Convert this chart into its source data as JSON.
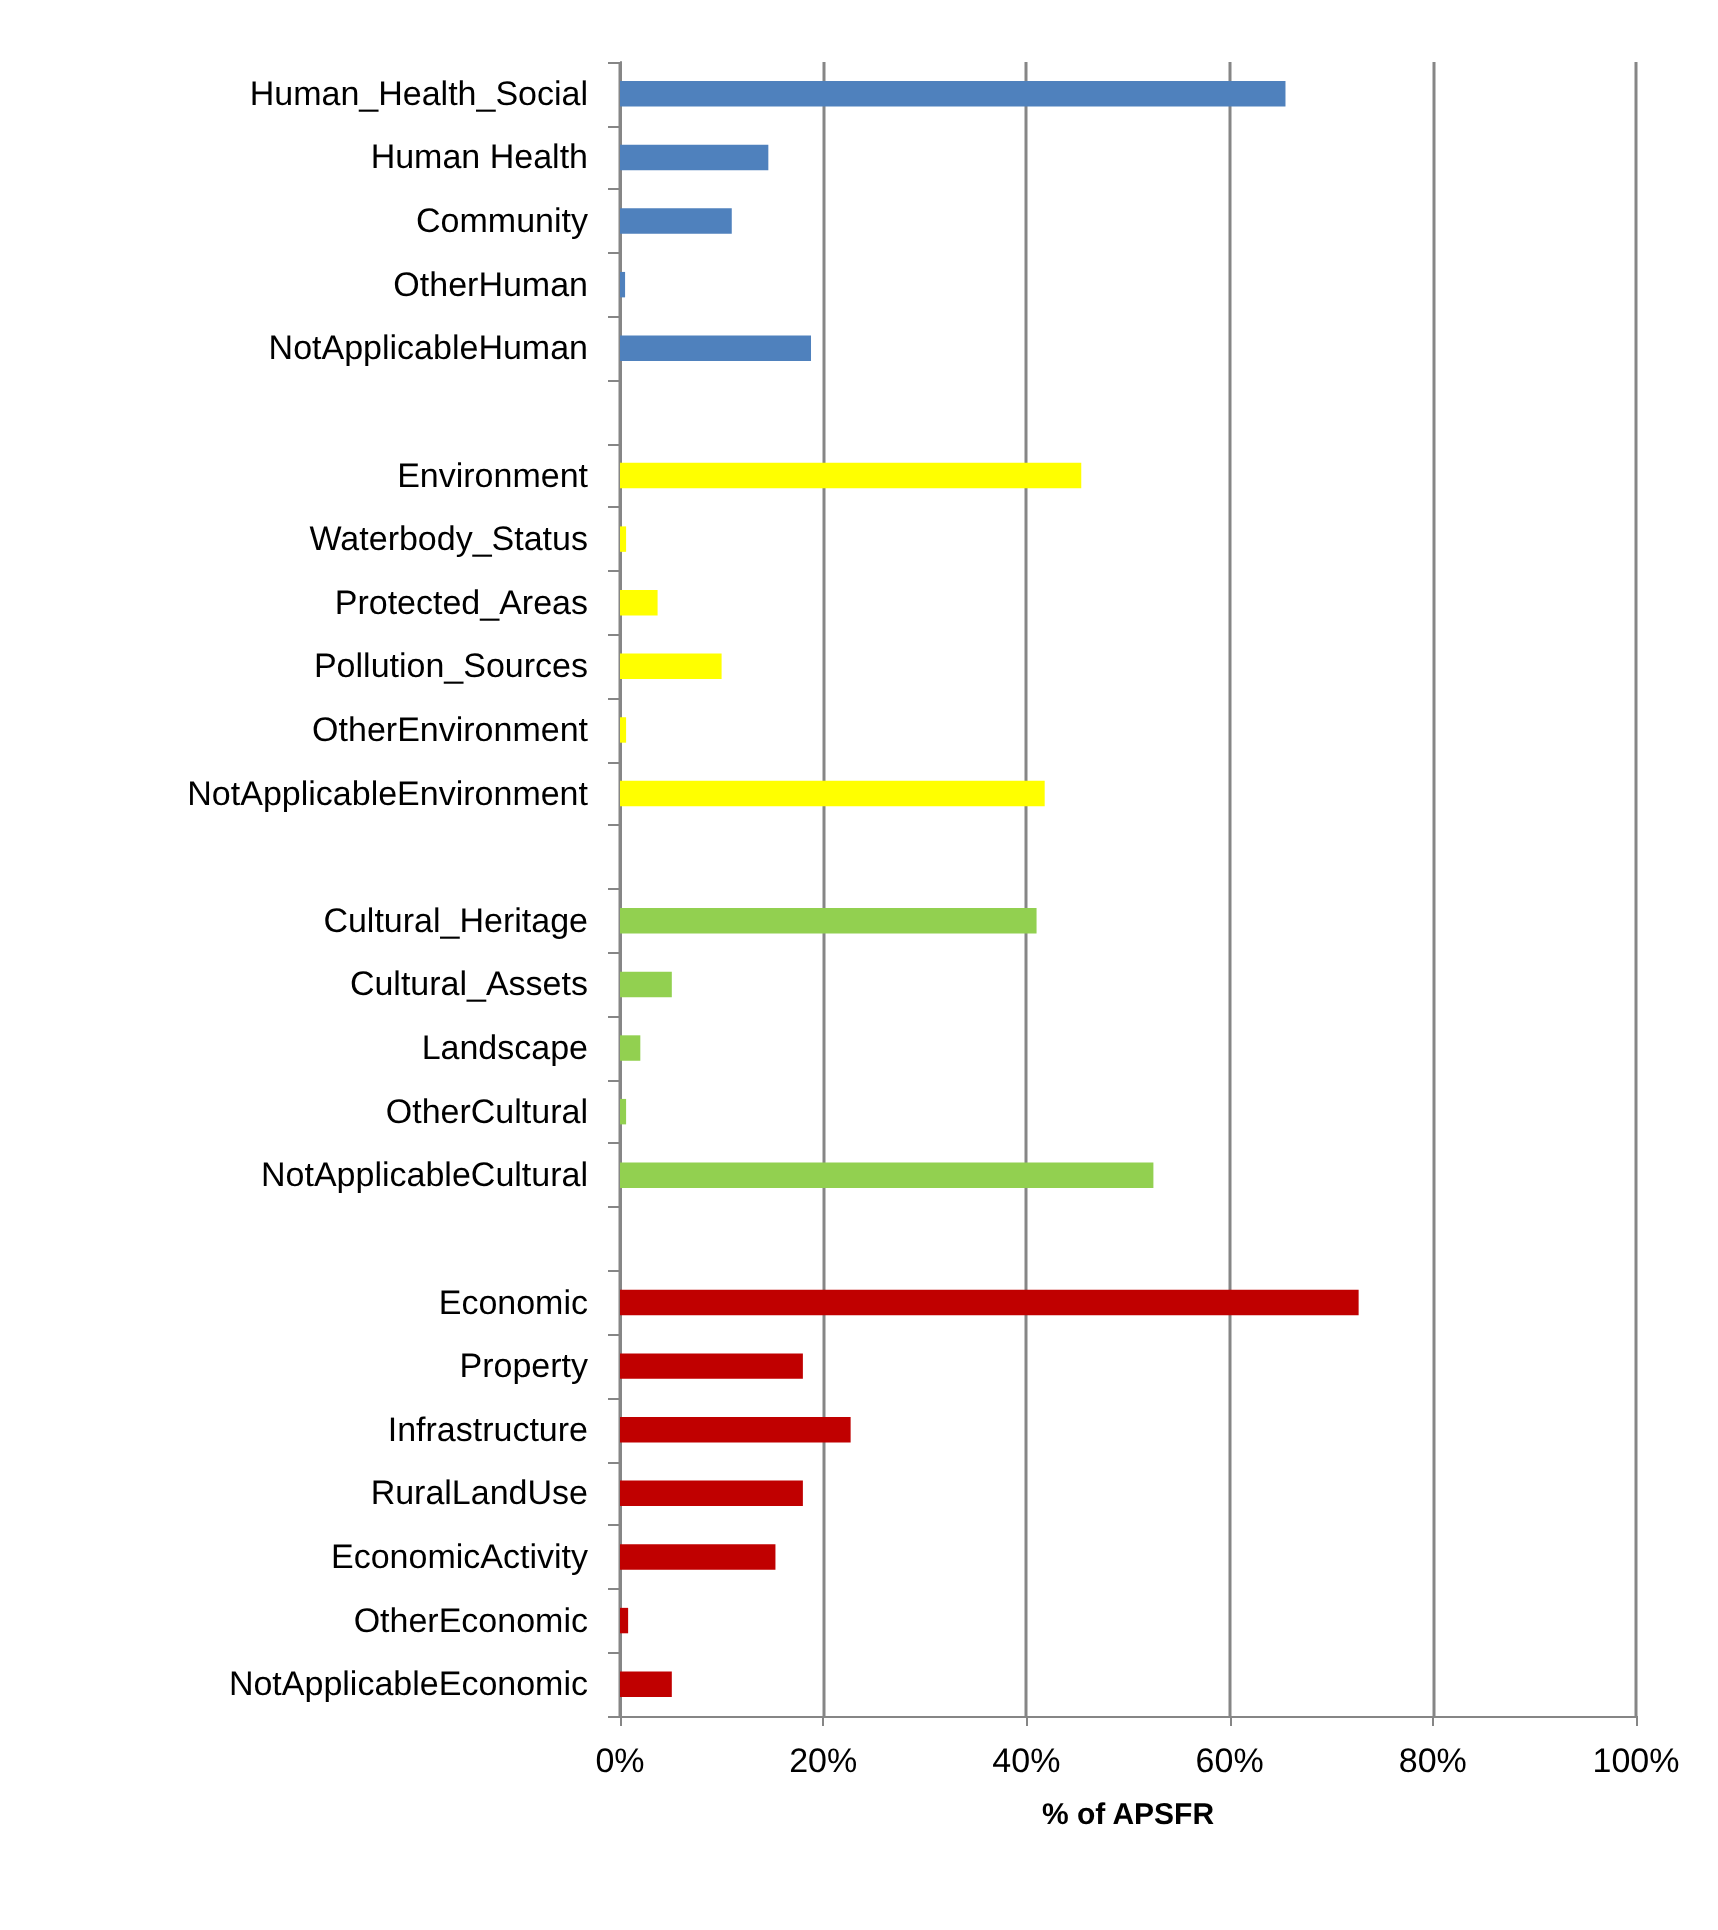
{
  "chart_data": {
    "type": "bar",
    "orientation": "horizontal",
    "xlabel": "% of APSFR",
    "categories": [
      "Human_Health_Social",
      "Human Health",
      "Community",
      "OtherHuman",
      "NotApplicableHuman",
      null,
      "Environment",
      "Waterbody_Status",
      "Protected_Areas",
      "Pollution_Sources",
      "OtherEnvironment",
      "NotApplicableEnvironment",
      null,
      "Cultural_Heritage",
      "Cultural_Assets",
      "Landscape",
      "OtherCultural",
      "NotApplicableCultural",
      null,
      "Economic",
      "Property",
      "Infrastructure",
      "RuralLandUse",
      "EconomicActivity",
      "OtherEconomic",
      "NotApplicableEconomic"
    ],
    "values": [
      65.5,
      14.6,
      11.0,
      0.5,
      18.8,
      null,
      45.4,
      0.6,
      3.7,
      10.0,
      0.6,
      41.8,
      null,
      41.0,
      5.1,
      2.0,
      0.6,
      52.5,
      null,
      72.7,
      18.0,
      22.7,
      18.0,
      15.3,
      0.8,
      5.1
    ],
    "colors": [
      "#4f81bd",
      "#4f81bd",
      "#4f81bd",
      "#4f81bd",
      "#4f81bd",
      null,
      "#ffff00",
      "#ffff00",
      "#ffff00",
      "#ffff00",
      "#ffff00",
      "#ffff00",
      null,
      "#92d050",
      "#92d050",
      "#92d050",
      "#92d050",
      "#92d050",
      null,
      "#c00000",
      "#c00000",
      "#c00000",
      "#c00000",
      "#c00000",
      "#c00000",
      "#c00000"
    ],
    "xlim": [
      0,
      100
    ],
    "xticks": [
      {
        "value": 0,
        "label": "0%"
      },
      {
        "value": 20,
        "label": "20%"
      },
      {
        "value": 40,
        "label": "40%"
      },
      {
        "value": 60,
        "label": "60%"
      },
      {
        "value": 80,
        "label": "80%"
      },
      {
        "value": 100,
        "label": "100%"
      }
    ],
    "grid": "x"
  }
}
